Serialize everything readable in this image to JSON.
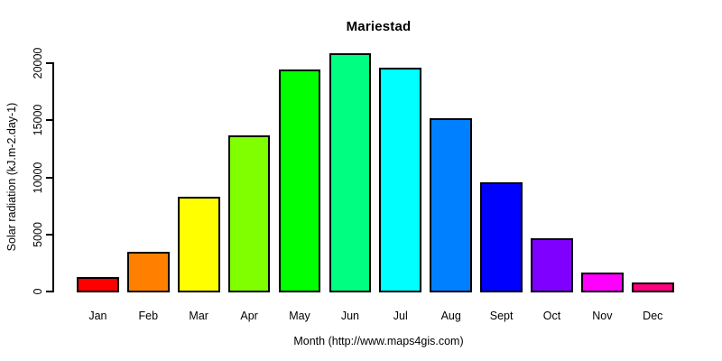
{
  "chart_data": {
    "type": "bar",
    "title": "Mariestad",
    "xlabel": "Month (http://www.maps4gis.com)",
    "ylabel": "Solar radiation (kJ.m-2.day-1)",
    "categories": [
      "Jan",
      "Feb",
      "Mar",
      "Apr",
      "May",
      "Jun",
      "Jul",
      "Aug",
      "Sept",
      "Oct",
      "Nov",
      "Dec"
    ],
    "values": [
      1200,
      3400,
      8250,
      13600,
      19400,
      20800,
      19500,
      15100,
      9450,
      4600,
      1550,
      750
    ],
    "bar_colors": [
      "#FF0000",
      "#FF8000",
      "#FFFF00",
      "#80FF00",
      "#00FF00",
      "#00FF80",
      "#00FFFF",
      "#0080FF",
      "#0000FF",
      "#8000FF",
      "#FF00FF",
      "#FF0080"
    ],
    "bar_border_color": "#000000",
    "background_color": "#FFFFFF",
    "yticks": [
      0,
      5000,
      10000,
      15000,
      20000
    ],
    "ylim": [
      0,
      21000
    ],
    "grid": false,
    "legend": null
  }
}
